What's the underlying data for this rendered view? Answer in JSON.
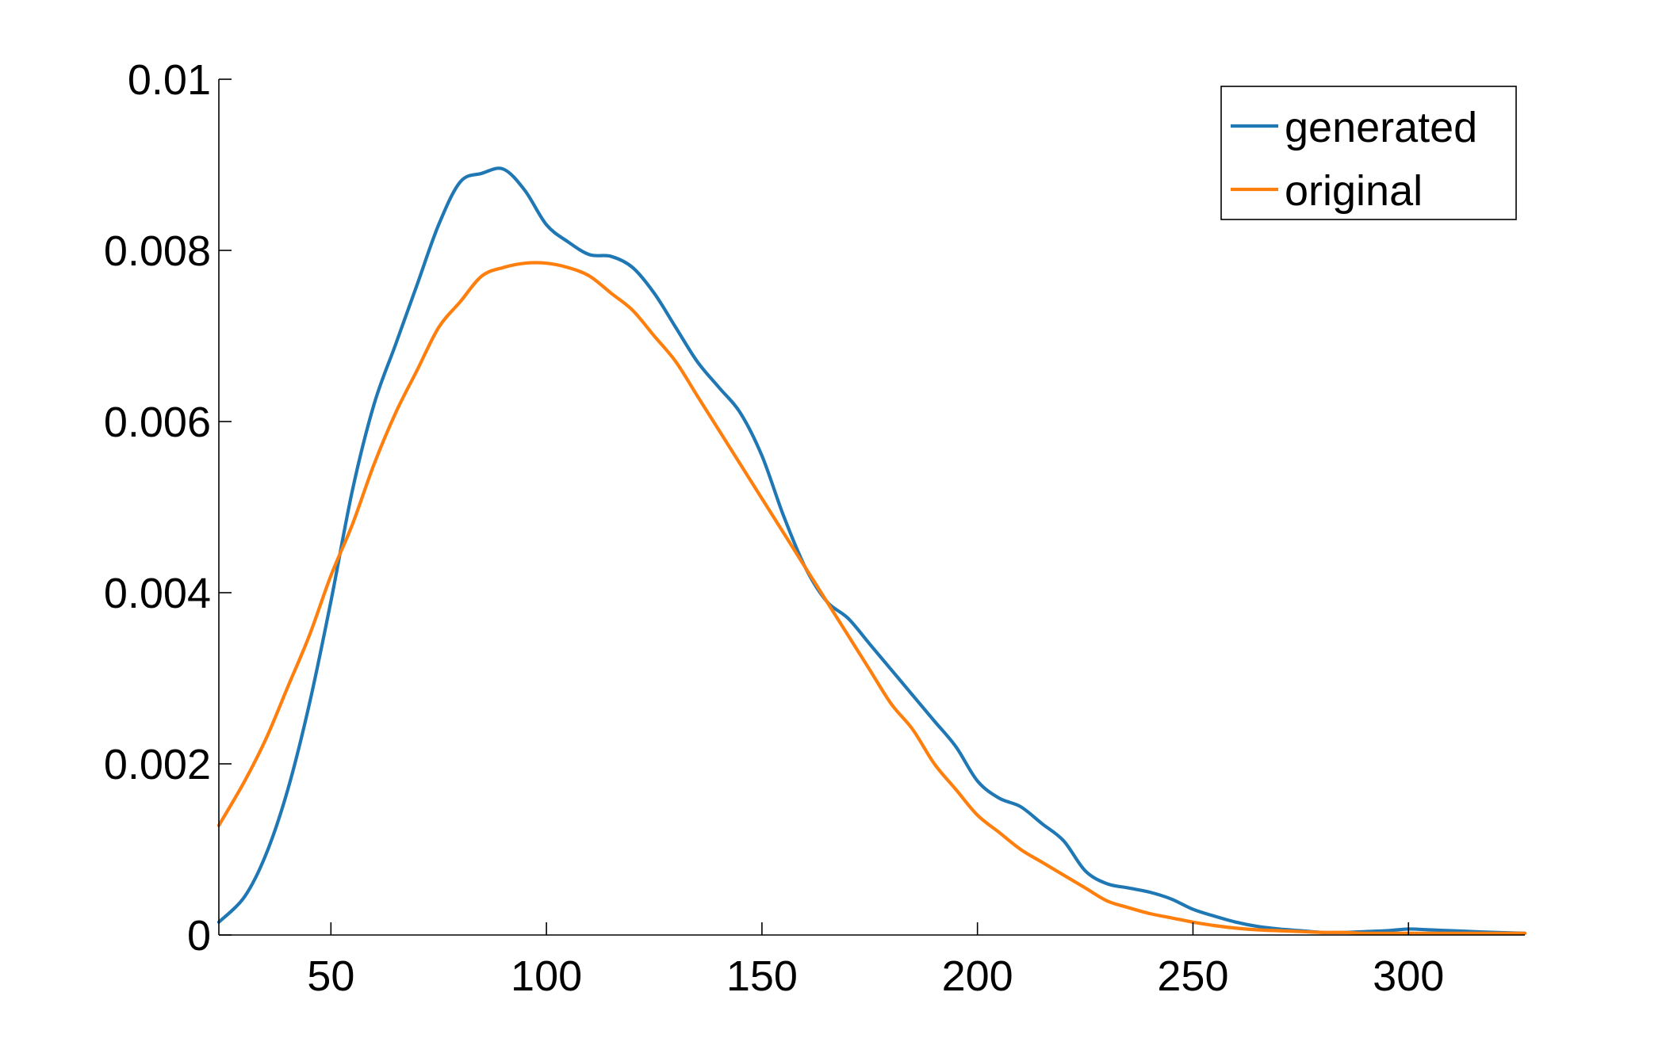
{
  "chart_data": {
    "type": "line",
    "title": "",
    "xlabel": "",
    "ylabel": "",
    "xlim": [
      24,
      327
    ],
    "ylim": [
      0,
      0.01
    ],
    "x_ticks": [
      50,
      100,
      150,
      200,
      250,
      300
    ],
    "y_ticks": [
      0,
      0.002,
      0.004,
      0.006,
      0.008,
      0.01
    ],
    "x_tick_labels": [
      "50",
      "100",
      "150",
      "200",
      "250",
      "300"
    ],
    "y_tick_labels": [
      "0",
      "0.002",
      "0.004",
      "0.006",
      "0.008",
      "0.01"
    ],
    "grid": false,
    "legend_position": "top-right",
    "series": [
      {
        "name": "generated",
        "color": "#1f77b4",
        "x": [
          24,
          30,
          35,
          40,
          45,
          50,
          55,
          60,
          65,
          70,
          75,
          80,
          85,
          90,
          95,
          100,
          105,
          110,
          115,
          120,
          125,
          130,
          135,
          140,
          145,
          150,
          155,
          160,
          165,
          170,
          175,
          180,
          185,
          190,
          195,
          200,
          205,
          210,
          215,
          220,
          225,
          230,
          235,
          240,
          245,
          250,
          255,
          260,
          265,
          270,
          275,
          280,
          285,
          290,
          295,
          300,
          305,
          310,
          315,
          320,
          327
        ],
        "y": [
          0.00015,
          0.00045,
          0.00095,
          0.0017,
          0.0027,
          0.0039,
          0.0052,
          0.0062,
          0.0069,
          0.0076,
          0.0083,
          0.0088,
          0.0089,
          0.00895,
          0.0087,
          0.0083,
          0.0081,
          0.00795,
          0.00793,
          0.0078,
          0.0075,
          0.0071,
          0.0067,
          0.0064,
          0.0061,
          0.0056,
          0.0049,
          0.0043,
          0.0039,
          0.0037,
          0.0034,
          0.0031,
          0.0028,
          0.0025,
          0.0022,
          0.0018,
          0.0016,
          0.0015,
          0.0013,
          0.0011,
          0.00075,
          0.0006,
          0.00055,
          0.0005,
          0.00042,
          0.0003,
          0.00022,
          0.00015,
          0.0001,
          7e-05,
          5e-05,
          3e-05,
          3e-05,
          4e-05,
          5e-05,
          7e-05,
          6e-05,
          5e-05,
          4e-05,
          3e-05,
          2e-05
        ]
      },
      {
        "name": "original",
        "color": "#ff7f0e",
        "x": [
          24,
          30,
          35,
          40,
          45,
          50,
          55,
          60,
          65,
          70,
          75,
          80,
          85,
          90,
          95,
          100,
          105,
          110,
          115,
          120,
          125,
          130,
          135,
          140,
          145,
          150,
          155,
          160,
          165,
          170,
          175,
          180,
          185,
          190,
          195,
          200,
          205,
          210,
          215,
          220,
          225,
          230,
          235,
          240,
          245,
          250,
          255,
          260,
          265,
          270,
          275,
          280,
          285,
          290,
          295,
          300,
          305,
          310,
          315,
          320,
          327
        ],
        "y": [
          0.00128,
          0.0018,
          0.0023,
          0.0029,
          0.0035,
          0.0042,
          0.0048,
          0.0055,
          0.0061,
          0.0066,
          0.0071,
          0.0074,
          0.0077,
          0.0078,
          0.00785,
          0.00785,
          0.0078,
          0.0077,
          0.0075,
          0.0073,
          0.007,
          0.0067,
          0.0063,
          0.0059,
          0.0055,
          0.0051,
          0.0047,
          0.0043,
          0.0039,
          0.0035,
          0.0031,
          0.0027,
          0.0024,
          0.002,
          0.0017,
          0.0014,
          0.0012,
          0.001,
          0.00085,
          0.0007,
          0.00055,
          0.0004,
          0.00032,
          0.00025,
          0.0002,
          0.00015,
          0.00011,
          8e-05,
          6e-05,
          5e-05,
          4e-05,
          3e-05,
          3e-05,
          2e-05,
          2e-05,
          2e-05,
          2e-05,
          2e-05,
          2e-05,
          2e-05,
          2e-05
        ]
      }
    ]
  }
}
